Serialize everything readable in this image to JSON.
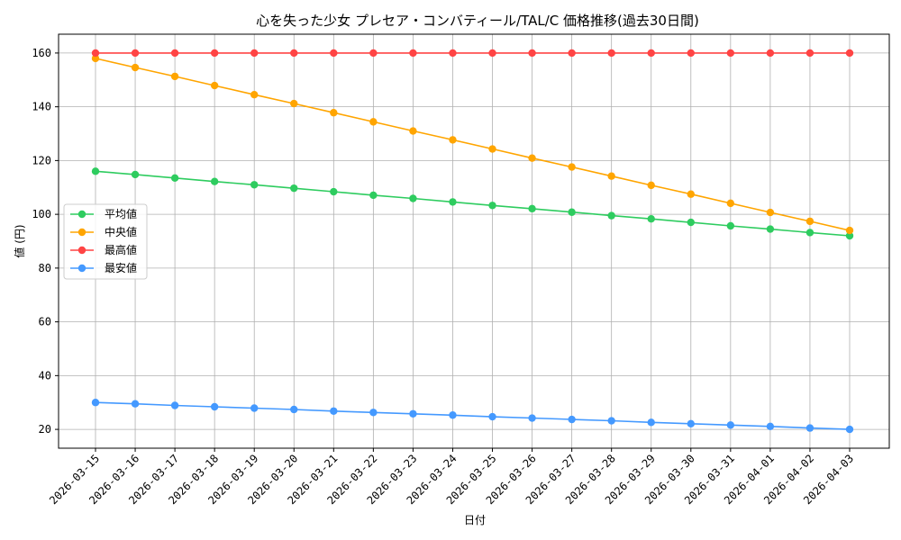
{
  "chart_data": {
    "type": "line",
    "title": "心を失った少女 プレセア・コンバティール/TAL/C 価格推移(過去30日間)",
    "xlabel": "日付",
    "ylabel": "値 (円)",
    "ylim": [
      13,
      167
    ],
    "yticks": [
      20,
      40,
      60,
      80,
      100,
      120,
      140,
      160
    ],
    "grid": true,
    "legend_position": "center-left",
    "categories": [
      "2026-03-15",
      "2026-03-16",
      "2026-03-17",
      "2026-03-18",
      "2026-03-19",
      "2026-03-20",
      "2026-03-21",
      "2026-03-22",
      "2026-03-23",
      "2026-03-24",
      "2026-03-25",
      "2026-03-26",
      "2026-03-27",
      "2026-03-28",
      "2026-03-29",
      "2026-03-30",
      "2026-03-31",
      "2026-04-01",
      "2026-04-02",
      "2026-04-03"
    ],
    "series": [
      {
        "name": "平均値",
        "color": "#2ecc5f",
        "values": [
          116,
          114.8,
          113.5,
          112.2,
          111,
          109.7,
          108.4,
          107.1,
          105.9,
          104.6,
          103.3,
          102.1,
          100.8,
          99.5,
          98.3,
          97,
          95.7,
          94.5,
          93.2,
          92
        ]
      },
      {
        "name": "中央値",
        "color": "#ffa500",
        "values": [
          158,
          154.6,
          151.3,
          147.9,
          144.5,
          141.2,
          137.8,
          134.4,
          131,
          127.7,
          124.3,
          120.9,
          117.6,
          114.2,
          110.8,
          107.5,
          104.1,
          100.7,
          97.4,
          94
        ]
      },
      {
        "name": "最高値",
        "color": "#ff4444",
        "values": [
          160,
          160,
          160,
          160,
          160,
          160,
          160,
          160,
          160,
          160,
          160,
          160,
          160,
          160,
          160,
          160,
          160,
          160,
          160,
          160
        ]
      },
      {
        "name": "最安値",
        "color": "#4499ff",
        "values": [
          30,
          29.5,
          28.9,
          28.4,
          27.9,
          27.4,
          26.8,
          26.3,
          25.8,
          25.3,
          24.7,
          24.2,
          23.7,
          23.2,
          22.6,
          22.1,
          21.6,
          21.1,
          20.5,
          20
        ]
      }
    ]
  }
}
